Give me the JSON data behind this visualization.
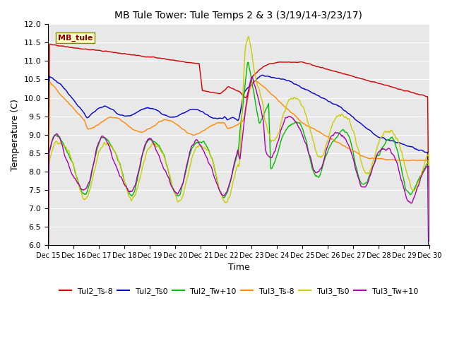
{
  "title": "MB Tule Tower: Tule Temps 2 & 3 (3/19/14-3/23/17)",
  "xlabel": "Time",
  "ylabel": "Temperature (C)",
  "ylim": [
    6.0,
    12.0
  ],
  "xlim": [
    15,
    30
  ],
  "yticks": [
    6.0,
    6.5,
    7.0,
    7.5,
    8.0,
    8.5,
    9.0,
    9.5,
    10.0,
    10.5,
    11.0,
    11.5,
    12.0
  ],
  "xtick_labels": [
    "Dec 15",
    "Dec 16",
    "Dec 17",
    "Dec 18",
    "Dec 19",
    "Dec 20",
    "Dec 21",
    "Dec 22",
    "Dec 23",
    "Dec 24",
    "Dec 25",
    "Dec 26",
    "Dec 27",
    "Dec 28",
    "Dec 29",
    "Dec 30"
  ],
  "bg_color": "#e8e8e8",
  "fig_color": "#ffffff",
  "grid_color": "#ffffff",
  "series": {
    "Tul2_Ts-8": {
      "color": "#cc0000",
      "lw": 1.0
    },
    "Tul2_Ts0": {
      "color": "#0000cc",
      "lw": 1.0
    },
    "Tul2_Tw+10": {
      "color": "#00bb00",
      "lw": 1.0
    },
    "Tul3_Ts-8": {
      "color": "#ff8800",
      "lw": 1.0
    },
    "Tul3_Ts0": {
      "color": "#cccc00",
      "lw": 1.0
    },
    "Tul3_Tw+10": {
      "color": "#aa00aa",
      "lw": 1.0
    }
  },
  "legend_label": "MB_tule",
  "legend_box_color": "#ffffcc",
  "legend_text_color": "#880000"
}
